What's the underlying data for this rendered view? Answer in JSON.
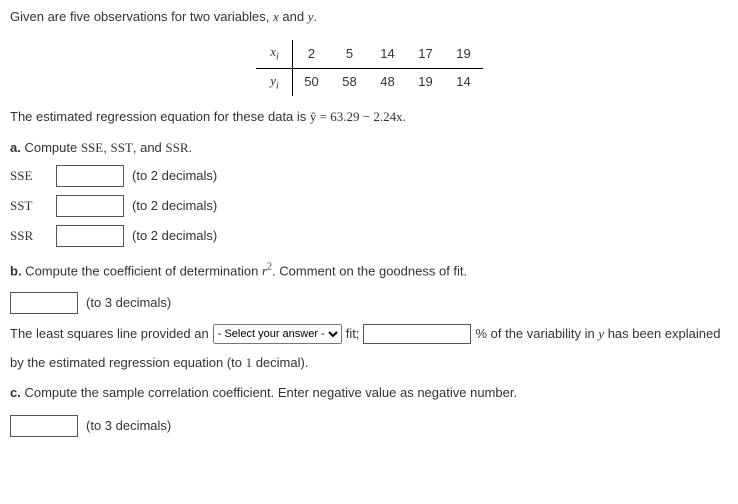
{
  "intro": "Given are five observations for two variables, x and y.",
  "table": {
    "x_label": "x",
    "y_label": "y",
    "x": [
      "2",
      "5",
      "14",
      "17",
      "19"
    ],
    "y": [
      "50",
      "58",
      "48",
      "19",
      "14"
    ]
  },
  "equation": {
    "prefix": "The estimated regression equation for these data is ",
    "expr": "ŷ = 63.29 − 2.24x."
  },
  "a": {
    "heading_bold": "a.",
    "heading_rest": " Compute SSE, SST, and SSR.",
    "sse_label": "SSE",
    "sst_label": "SST",
    "ssr_label": "SSR",
    "hint2": "(to 2 decimals)"
  },
  "b": {
    "heading_bold": "b.",
    "heading_rest_1": " Compute the coefficient of determination ",
    "heading_rest_2": ". Comment on the goodness of fit.",
    "r2_label": "r",
    "hint3": "(to 3 decimals)",
    "sentence1": "The least squares line provided an ",
    "select_placeholder": "- Select your answer -",
    "sentence2": " fit; ",
    "sentence3": " % of the variability in y has been explained",
    "sentence4": "by the estimated regression equation (to 1 decimal)."
  },
  "c": {
    "heading_bold": "c.",
    "heading_rest": " Compute the sample correlation coefficient. Enter negative value as negative number.",
    "hint3": "(to 3 decimals)"
  }
}
